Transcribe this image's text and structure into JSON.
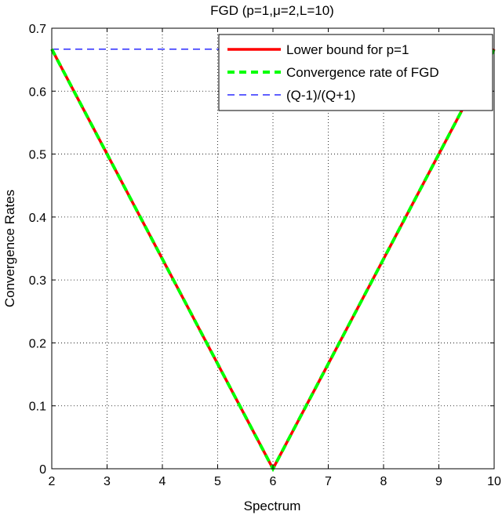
{
  "chart_data": {
    "type": "line",
    "title": "FGD (p=1,μ=2,L=10)",
    "xlabel": "Spectrum",
    "ylabel": "Convergence Rates",
    "xlim": [
      2,
      10
    ],
    "ylim": [
      0,
      0.7
    ],
    "xticks": [
      2,
      3,
      4,
      5,
      6,
      7,
      8,
      9,
      10
    ],
    "yticks": [
      0,
      0.1,
      0.2,
      0.3,
      0.4,
      0.5,
      0.6,
      0.7
    ],
    "xtick_labels": [
      "2",
      "3",
      "4",
      "5",
      "6",
      "7",
      "8",
      "9",
      "10"
    ],
    "ytick_labels": [
      "0",
      "0.1",
      "0.2",
      "0.3",
      "0.4",
      "0.5",
      "0.6",
      "0.7"
    ],
    "grid": true,
    "legend_position": "top-right",
    "series": [
      {
        "name": "Lower bound for p=1",
        "color": "#ff0000",
        "style": "solid",
        "x": [
          2,
          6,
          10
        ],
        "y": [
          0.6667,
          0,
          0.6667
        ]
      },
      {
        "name": "Convergence rate of FGD",
        "color": "#00ff00",
        "style": "dashed",
        "x": [
          2,
          6,
          10
        ],
        "y": [
          0.6667,
          0,
          0.6667
        ]
      },
      {
        "name": "(Q-1)/(Q+1)",
        "color": "#0000ff",
        "style": "dashed-thin",
        "x": [
          2,
          10
        ],
        "y": [
          0.6667,
          0.6667
        ]
      }
    ]
  }
}
